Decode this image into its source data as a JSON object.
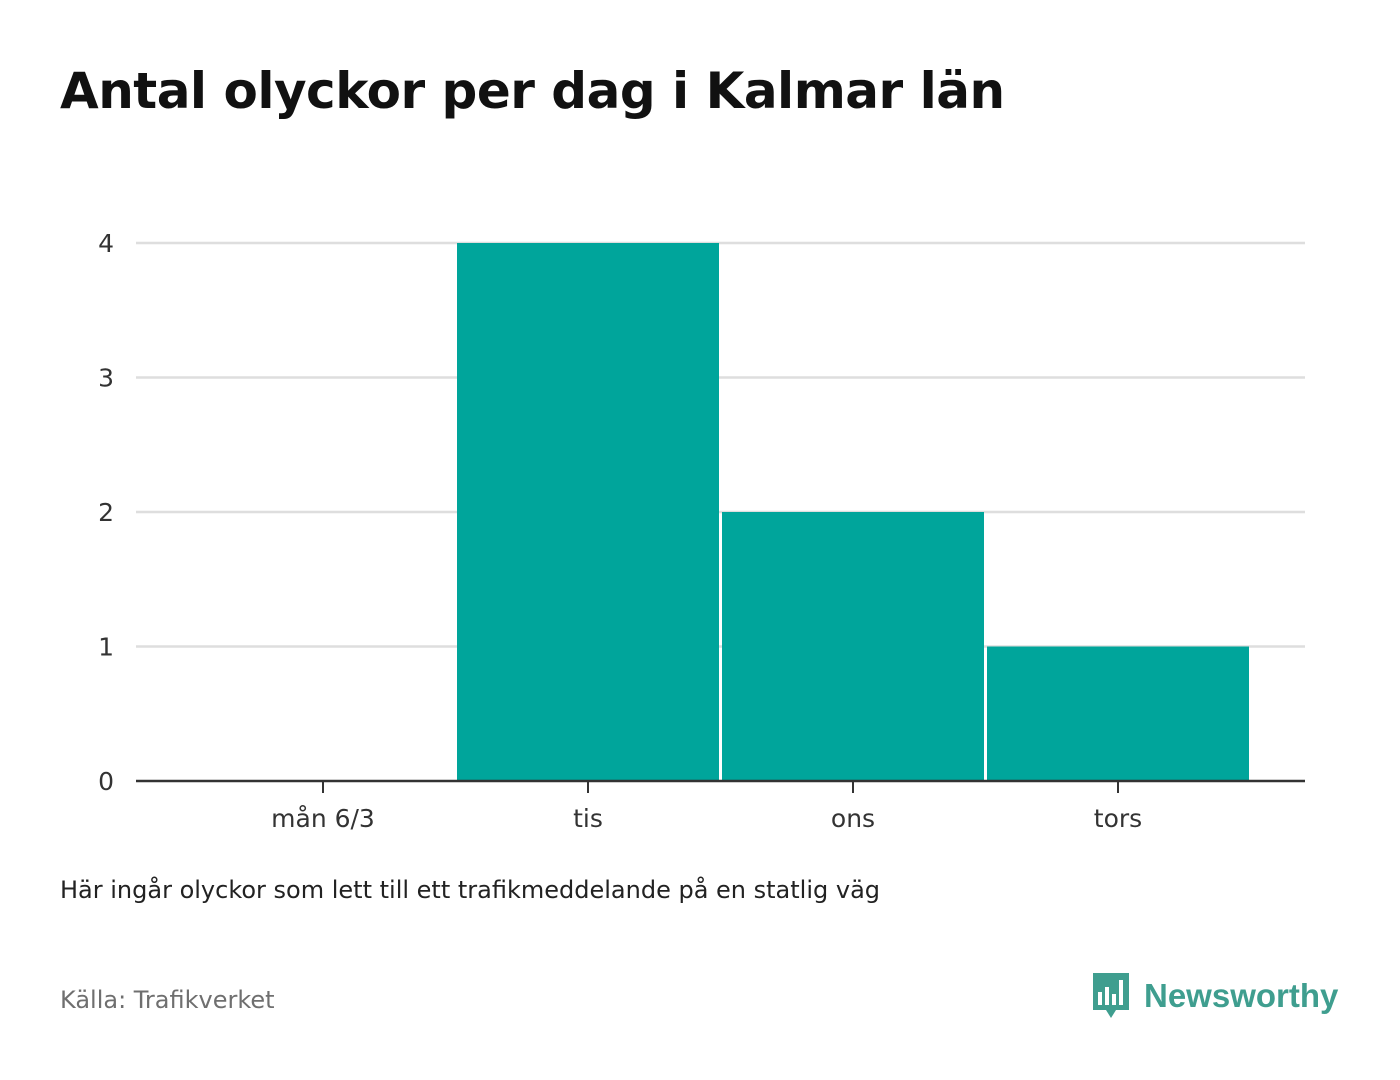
{
  "title": "Antal olyckor per dag i Kalmar län",
  "note": "Här ingår olyckor som lett till ett trafikmeddelande på en statlig väg",
  "source": "Källa: Trafikverket",
  "brand": {
    "name": "Newsworthy",
    "icon": "newsworthy-logo-icon",
    "color": "#3f9e8f"
  },
  "chart_data": {
    "type": "bar",
    "categories": [
      "mån 6/3",
      "tis",
      "ons",
      "tors"
    ],
    "values": [
      0,
      4,
      2,
      1
    ],
    "ylim": [
      0,
      4
    ],
    "yticks": [
      0,
      1,
      2,
      3,
      4
    ],
    "grid": true,
    "bar_color": "#00a59b"
  }
}
